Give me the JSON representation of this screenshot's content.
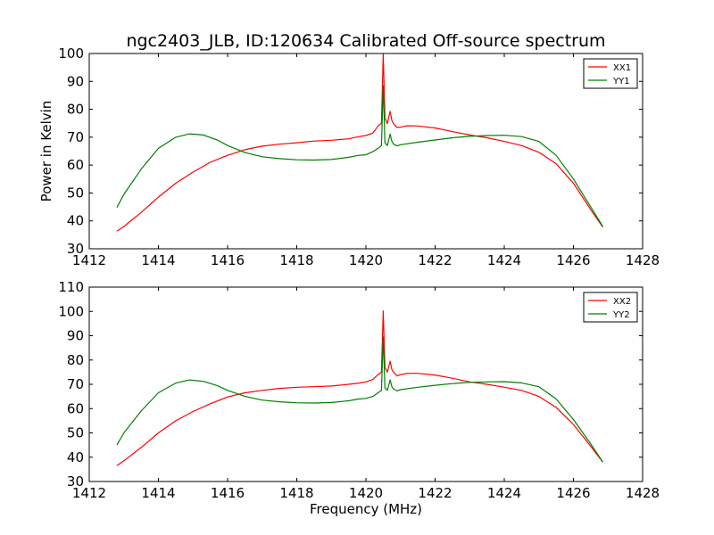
{
  "figure": {
    "title": "ngc2403_JLB, ID:120634 Calibrated Off-source spectrum",
    "xlabel": "Frequency (MHz)"
  },
  "chart_data": [
    {
      "type": "line",
      "title": "ngc2403_JLB, ID:120634 Calibrated Off-source spectrum",
      "xlabel": "",
      "ylabel": "Power in Kelvin",
      "xlim": [
        1412,
        1428
      ],
      "ylim": [
        30,
        100
      ],
      "xticks": [
        "1412",
        "1414",
        "1416",
        "1418",
        "1420",
        "1422",
        "1424",
        "1426",
        "1428"
      ],
      "yticks": [
        "30",
        "40",
        "50",
        "60",
        "70",
        "80",
        "90",
        "100"
      ],
      "legend_position": "top-right",
      "grid": false,
      "series": [
        {
          "name": "XX1",
          "color": "#ff0000",
          "x": [
            1412.8,
            1413.0,
            1413.5,
            1414.0,
            1414.5,
            1415.0,
            1415.5,
            1416.0,
            1416.5,
            1417.0,
            1417.5,
            1418.0,
            1418.5,
            1419.0,
            1419.5,
            1419.8,
            1420.0,
            1420.2,
            1420.35,
            1420.45,
            1420.5,
            1420.55,
            1420.62,
            1420.7,
            1420.75,
            1420.8,
            1420.9,
            1421.0,
            1421.2,
            1421.5,
            1422.0,
            1422.5,
            1423.0,
            1423.5,
            1424.0,
            1424.5,
            1425.0,
            1425.5,
            1426.0,
            1426.5,
            1426.85
          ],
          "y": [
            36.3,
            38.0,
            43.0,
            48.5,
            53.5,
            57.5,
            61.0,
            63.5,
            65.5,
            66.8,
            67.5,
            68.0,
            68.6,
            68.9,
            69.4,
            70.2,
            70.6,
            71.5,
            74.0,
            75.0,
            100.0,
            77.0,
            74.8,
            79.3,
            76.0,
            74.8,
            73.5,
            73.6,
            74.1,
            74.0,
            73.3,
            72.0,
            70.8,
            69.8,
            68.5,
            67.0,
            64.6,
            60.5,
            53.5,
            44.0,
            37.8
          ]
        },
        {
          "name": "YY1",
          "color": "#007f00",
          "x": [
            1412.8,
            1413.0,
            1413.5,
            1414.0,
            1414.5,
            1414.9,
            1415.3,
            1415.7,
            1416.0,
            1416.5,
            1417.0,
            1417.5,
            1418.0,
            1418.5,
            1419.0,
            1419.5,
            1419.8,
            1420.0,
            1420.2,
            1420.35,
            1420.45,
            1420.5,
            1420.55,
            1420.62,
            1420.7,
            1420.75,
            1420.8,
            1420.9,
            1421.0,
            1421.5,
            1422.0,
            1422.5,
            1423.0,
            1423.5,
            1424.0,
            1424.5,
            1425.0,
            1425.5,
            1426.0,
            1426.5,
            1426.85
          ],
          "y": [
            44.8,
            49.5,
            58.5,
            66.0,
            70.0,
            71.2,
            70.8,
            69.0,
            67.0,
            64.5,
            63.0,
            62.3,
            61.9,
            61.8,
            62.0,
            62.8,
            63.5,
            63.7,
            64.8,
            66.0,
            67.0,
            88.5,
            68.0,
            67.0,
            71.1,
            68.5,
            67.5,
            66.9,
            67.3,
            68.2,
            69.0,
            69.8,
            70.3,
            70.6,
            70.7,
            70.2,
            68.5,
            63.5,
            55.0,
            45.0,
            38.0
          ]
        }
      ]
    },
    {
      "type": "line",
      "title": "",
      "xlabel": "Frequency (MHz)",
      "ylabel": "",
      "xlim": [
        1412,
        1428
      ],
      "ylim": [
        30,
        110
      ],
      "xticks": [
        "1412",
        "1414",
        "1416",
        "1418",
        "1420",
        "1422",
        "1424",
        "1426",
        "1428"
      ],
      "yticks": [
        "30",
        "40",
        "50",
        "60",
        "70",
        "80",
        "90",
        "100",
        "110"
      ],
      "legend_position": "top-right",
      "grid": false,
      "series": [
        {
          "name": "XX2",
          "color": "#ff0000",
          "x": [
            1412.8,
            1413.0,
            1413.5,
            1414.0,
            1414.5,
            1415.0,
            1415.5,
            1416.0,
            1416.5,
            1417.0,
            1417.5,
            1418.0,
            1418.5,
            1419.0,
            1419.5,
            1419.8,
            1420.0,
            1420.2,
            1420.35,
            1420.45,
            1420.5,
            1420.55,
            1420.62,
            1420.7,
            1420.75,
            1420.8,
            1420.9,
            1421.0,
            1421.2,
            1421.5,
            1422.0,
            1422.5,
            1423.0,
            1423.5,
            1424.0,
            1424.5,
            1425.0,
            1425.5,
            1426.0,
            1426.5,
            1426.85
          ],
          "y": [
            36.5,
            38.5,
            44.0,
            50.0,
            55.0,
            58.8,
            62.0,
            64.8,
            66.5,
            67.5,
            68.3,
            68.8,
            69.0,
            69.3,
            70.0,
            70.5,
            71.0,
            72.0,
            74.0,
            75.0,
            100.2,
            77.0,
            75.0,
            79.5,
            76.0,
            75.0,
            73.5,
            74.0,
            74.5,
            74.5,
            73.8,
            72.5,
            71.0,
            70.0,
            68.8,
            67.5,
            65.0,
            60.5,
            53.5,
            44.5,
            38.0
          ]
        },
        {
          "name": "YY2",
          "color": "#007f00",
          "x": [
            1412.8,
            1413.0,
            1413.5,
            1414.0,
            1414.5,
            1414.9,
            1415.3,
            1415.7,
            1416.0,
            1416.5,
            1417.0,
            1417.5,
            1418.0,
            1418.5,
            1419.0,
            1419.5,
            1419.8,
            1420.0,
            1420.2,
            1420.35,
            1420.45,
            1420.5,
            1420.55,
            1420.62,
            1420.7,
            1420.75,
            1420.8,
            1420.9,
            1421.0,
            1421.5,
            1422.0,
            1422.5,
            1423.0,
            1423.5,
            1424.0,
            1424.5,
            1425.0,
            1425.5,
            1426.0,
            1426.5,
            1426.85
          ],
          "y": [
            45.0,
            50.0,
            59.0,
            66.5,
            70.5,
            71.8,
            71.2,
            69.5,
            67.5,
            65.0,
            63.5,
            62.8,
            62.4,
            62.3,
            62.5,
            63.2,
            64.0,
            64.2,
            65.0,
            66.5,
            67.5,
            89.5,
            68.5,
            67.5,
            71.8,
            69.0,
            68.0,
            67.3,
            67.8,
            68.8,
            69.6,
            70.3,
            70.8,
            71.0,
            71.1,
            70.6,
            69.0,
            64.0,
            55.5,
            45.5,
            38.0
          ]
        }
      ]
    }
  ]
}
